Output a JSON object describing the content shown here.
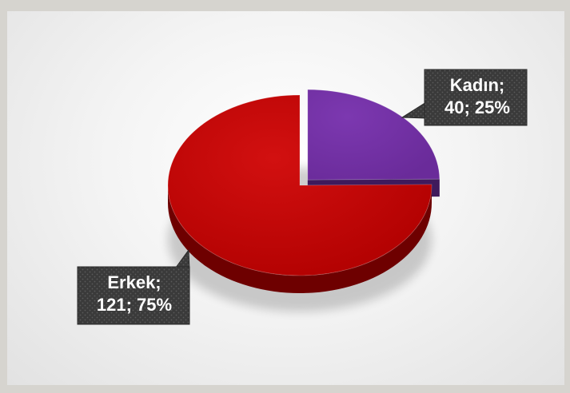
{
  "chart_data": {
    "type": "pie",
    "slices": [
      {
        "category": "Kadın",
        "value": 40,
        "percent": "25%",
        "label_line1": "Kadın;",
        "label_line2": "40; 25%",
        "color": "#7030a0",
        "side": "#3f1a5c"
      },
      {
        "category": "Erkek",
        "value": 121,
        "percent": "75%",
        "label_line1": "Erkek;",
        "label_line2": "121; 75%",
        "color": "#c00000",
        "side": "#6e0000"
      }
    ]
  }
}
